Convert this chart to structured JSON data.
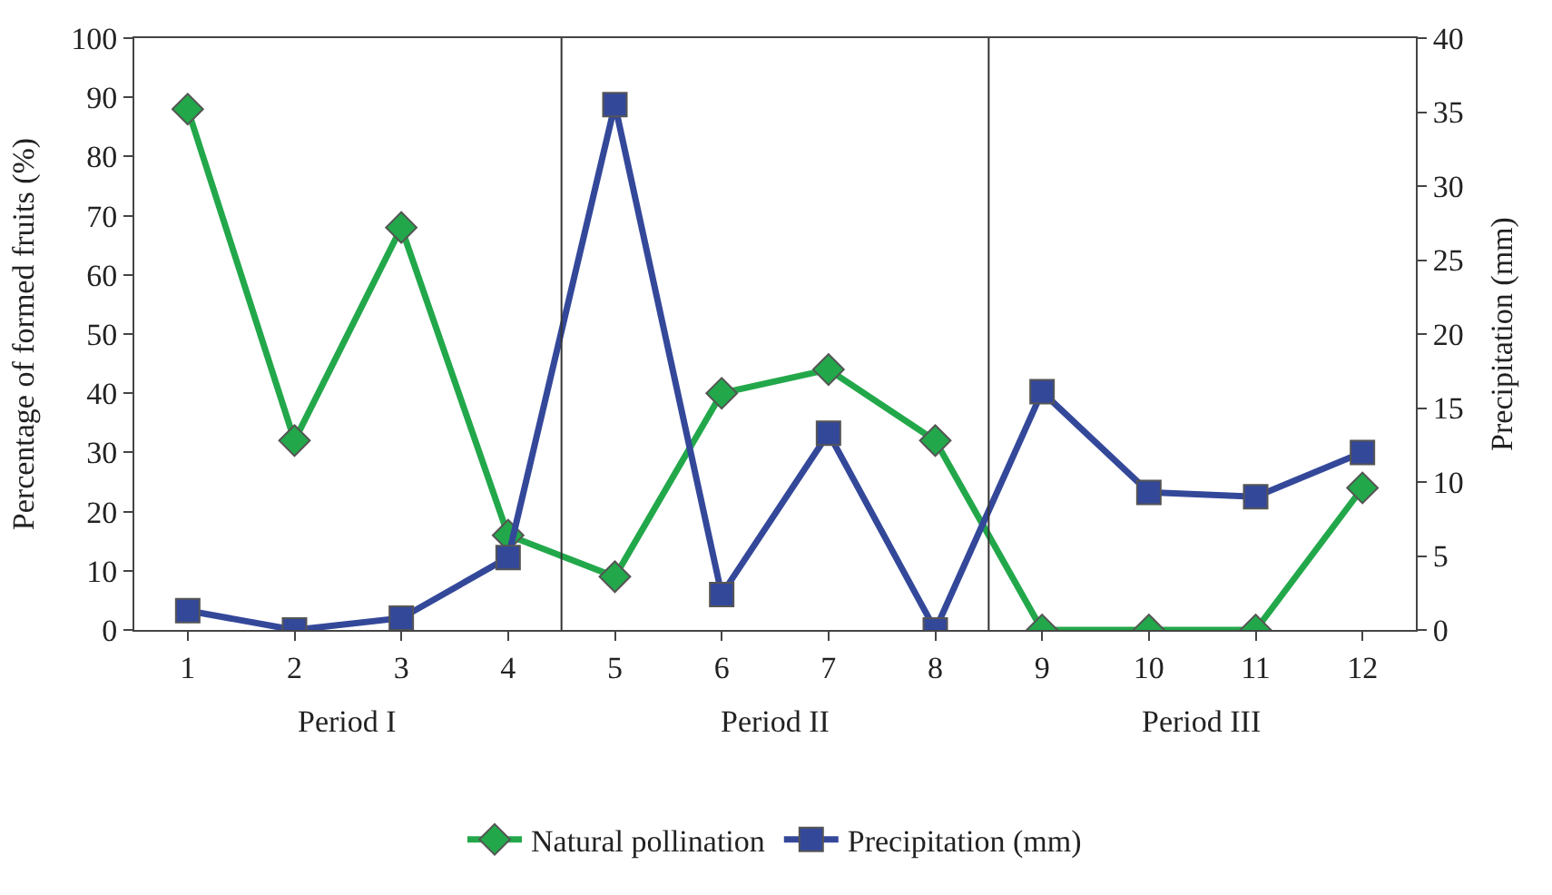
{
  "chart_data": {
    "type": "line",
    "ylabel": "Percentage of formed fruits (%)",
    "y2label": "Precipitation (mm)",
    "x": [
      1,
      2,
      3,
      4,
      5,
      6,
      7,
      8,
      9,
      10,
      11,
      12
    ],
    "xlim": [
      0.5,
      12.5
    ],
    "xticks": [
      1,
      2,
      3,
      4,
      5,
      6,
      7,
      8,
      9,
      10,
      11,
      12
    ],
    "ylim": [
      0,
      100
    ],
    "yticks": [
      0,
      10,
      20,
      30,
      40,
      50,
      60,
      70,
      80,
      90,
      100
    ],
    "y2lim": [
      0,
      40
    ],
    "y2ticks": [
      0,
      5,
      10,
      15,
      20,
      25,
      30,
      35,
      40
    ],
    "series": [
      {
        "name": "Natural pollination",
        "color": "#22a84a",
        "marker": "diamond",
        "values": [
          88,
          32,
          68,
          16,
          9,
          40,
          44,
          32,
          0,
          0,
          0,
          24
        ]
      },
      {
        "name": "Precipitation (mm)",
        "color": "#34489a",
        "marker": "square",
        "axis": "y2",
        "values": [
          1.3,
          0,
          0.8,
          4.9,
          35.5,
          2.4,
          13.3,
          0,
          16.1,
          9.3,
          9.0,
          12
        ]
      }
    ],
    "ref_lines": [
      {
        "axis": "x",
        "value": 4.5,
        "color": "#333333"
      },
      {
        "axis": "x",
        "value": 8.5,
        "color": "#333333"
      }
    ],
    "annotations": [
      "Period I",
      "Period II",
      "Period III"
    ],
    "legend": "bottom"
  }
}
